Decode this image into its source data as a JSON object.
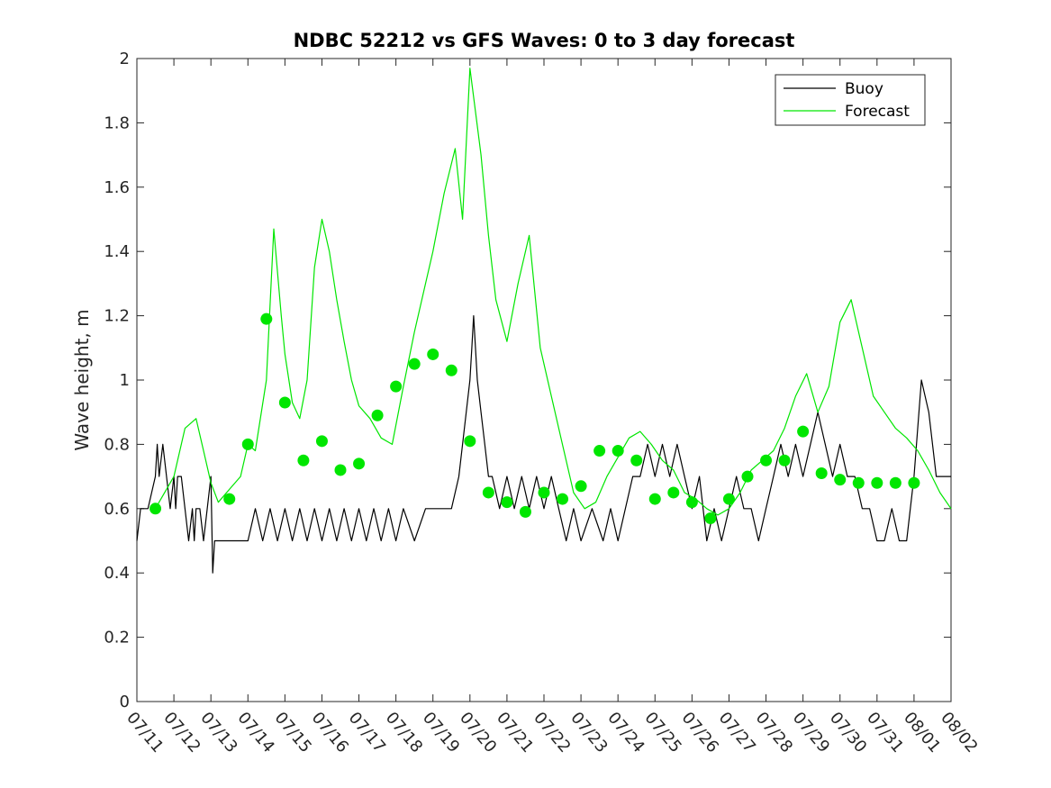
{
  "chart_data": {
    "type": "line",
    "title": "NDBC 52212 vs GFS Waves: 0 to 3 day forecast",
    "xlabel": "",
    "ylabel": "Wave height, m",
    "xlim": [
      0,
      22
    ],
    "ylim": [
      0,
      2
    ],
    "y_ticks": [
      "0",
      "0.2",
      "0.4",
      "0.6",
      "0.8",
      "1",
      "1.2",
      "1.4",
      "1.6",
      "1.8",
      "2"
    ],
    "x_ticks": [
      "07/11",
      "07/12",
      "07/13",
      "07/14",
      "07/15",
      "07/16",
      "07/17",
      "07/18",
      "07/19",
      "07/20",
      "07/21",
      "07/22",
      "07/23",
      "07/24",
      "07/25",
      "07/26",
      "07/27",
      "07/28",
      "07/29",
      "07/30",
      "07/31",
      "08/01",
      "08/02"
    ],
    "grid": false,
    "legend": {
      "location": "top-right",
      "entries": [
        {
          "label": "Buoy",
          "color": "#000000"
        },
        {
          "label": "Forecast",
          "color": "#00e600"
        }
      ]
    },
    "series": [
      {
        "name": "Buoy",
        "color": "#000000",
        "x": [
          0,
          0.1,
          0.3,
          0.5,
          0.55,
          0.6,
          0.7,
          0.8,
          0.9,
          1.0,
          1.05,
          1.1,
          1.2,
          1.3,
          1.4,
          1.5,
          1.55,
          1.6,
          1.7,
          1.8,
          1.9,
          2.0,
          2.05,
          2.1,
          2.5,
          2.8,
          3.0,
          3.2,
          3.4,
          3.6,
          3.8,
          4.0,
          4.2,
          4.4,
          4.6,
          4.8,
          5.0,
          5.2,
          5.4,
          5.6,
          5.8,
          6.0,
          6.2,
          6.4,
          6.6,
          6.8,
          7.0,
          7.2,
          7.5,
          7.8,
          8.0,
          8.5,
          8.7,
          8.8,
          8.9,
          9.0,
          9.05,
          9.1,
          9.2,
          9.3,
          9.4,
          9.5,
          9.6,
          9.8,
          10.0,
          10.2,
          10.4,
          10.6,
          10.8,
          11.0,
          11.2,
          11.4,
          11.6,
          11.8,
          12.0,
          12.3,
          12.6,
          12.8,
          13.0,
          13.2,
          13.4,
          13.6,
          13.8,
          14.0,
          14.2,
          14.4,
          14.6,
          14.8,
          15.0,
          15.2,
          15.4,
          15.6,
          15.8,
          16.0,
          16.2,
          16.4,
          16.6,
          16.8,
          17.0,
          17.2,
          17.4,
          17.6,
          17.8,
          18.0,
          18.2,
          18.4,
          18.6,
          18.8,
          19.0,
          19.2,
          19.4,
          19.6,
          19.8,
          20.0,
          20.2,
          20.4,
          20.6,
          20.8,
          21.0,
          21.2,
          21.4,
          21.6,
          21.8,
          22.0
        ],
        "y": [
          0.5,
          0.6,
          0.6,
          0.7,
          0.8,
          0.7,
          0.8,
          0.7,
          0.6,
          0.7,
          0.6,
          0.7,
          0.7,
          0.6,
          0.5,
          0.6,
          0.5,
          0.6,
          0.6,
          0.5,
          0.6,
          0.7,
          0.4,
          0.5,
          0.5,
          0.5,
          0.5,
          0.6,
          0.5,
          0.6,
          0.5,
          0.6,
          0.5,
          0.6,
          0.5,
          0.6,
          0.5,
          0.6,
          0.5,
          0.6,
          0.5,
          0.6,
          0.5,
          0.6,
          0.5,
          0.6,
          0.5,
          0.6,
          0.5,
          0.6,
          0.6,
          0.6,
          0.7,
          0.8,
          0.9,
          1.0,
          1.1,
          1.2,
          1.0,
          0.9,
          0.8,
          0.7,
          0.7,
          0.6,
          0.7,
          0.6,
          0.7,
          0.6,
          0.7,
          0.6,
          0.7,
          0.6,
          0.5,
          0.6,
          0.5,
          0.6,
          0.5,
          0.6,
          0.5,
          0.6,
          0.7,
          0.7,
          0.8,
          0.7,
          0.8,
          0.7,
          0.8,
          0.7,
          0.6,
          0.7,
          0.5,
          0.6,
          0.5,
          0.6,
          0.7,
          0.6,
          0.6,
          0.5,
          0.6,
          0.7,
          0.8,
          0.7,
          0.8,
          0.7,
          0.8,
          0.9,
          0.8,
          0.7,
          0.8,
          0.7,
          0.7,
          0.6,
          0.6,
          0.5,
          0.5,
          0.6,
          0.5,
          0.5,
          0.7,
          1.0,
          0.9,
          0.7,
          0.7,
          0.7
        ]
      },
      {
        "name": "Forecast",
        "color": "#00e600",
        "x": [
          0.5,
          1.0,
          1.3,
          1.6,
          1.8,
          2.0,
          2.2,
          2.5,
          2.8,
          3.0,
          3.2,
          3.5,
          3.7,
          3.9,
          4.0,
          4.2,
          4.4,
          4.6,
          4.8,
          5.0,
          5.2,
          5.4,
          5.6,
          5.8,
          6.0,
          6.3,
          6.6,
          6.9,
          7.2,
          7.5,
          7.8,
          8.0,
          8.3,
          8.6,
          8.8,
          9.0,
          9.3,
          9.5,
          9.7,
          10.0,
          10.3,
          10.6,
          10.9,
          11.2,
          11.5,
          11.8,
          12.1,
          12.4,
          12.7,
          13.0,
          13.3,
          13.6,
          13.9,
          14.2,
          14.5,
          14.8,
          15.1,
          15.4,
          15.7,
          16.0,
          16.3,
          16.6,
          16.9,
          17.2,
          17.5,
          17.8,
          18.1,
          18.4,
          18.7,
          19.0,
          19.3,
          19.6,
          19.9,
          20.2,
          20.5,
          20.8,
          21.1,
          21.4,
          21.7,
          22.0
        ],
        "y": [
          0.6,
          0.7,
          0.85,
          0.88,
          0.78,
          0.68,
          0.62,
          0.66,
          0.7,
          0.8,
          0.78,
          1.0,
          1.47,
          1.2,
          1.08,
          0.93,
          0.88,
          1.0,
          1.35,
          1.5,
          1.4,
          1.25,
          1.12,
          1.0,
          0.92,
          0.88,
          0.82,
          0.8,
          0.98,
          1.15,
          1.3,
          1.4,
          1.58,
          1.72,
          1.5,
          1.97,
          1.7,
          1.45,
          1.25,
          1.12,
          1.3,
          1.45,
          1.1,
          0.95,
          0.8,
          0.65,
          0.6,
          0.62,
          0.7,
          0.76,
          0.82,
          0.84,
          0.8,
          0.75,
          0.72,
          0.65,
          0.63,
          0.6,
          0.58,
          0.6,
          0.65,
          0.72,
          0.75,
          0.78,
          0.85,
          0.95,
          1.02,
          0.9,
          0.98,
          1.18,
          1.25,
          1.1,
          0.95,
          0.9,
          0.85,
          0.82,
          0.78,
          0.72,
          0.65,
          0.6
        ]
      }
    ],
    "markers": {
      "name": "Forecast",
      "color": "#00e600",
      "x": [
        0.5,
        2.5,
        3.0,
        3.5,
        4.0,
        4.5,
        5.0,
        5.5,
        6.0,
        6.5,
        7.0,
        7.5,
        8.0,
        8.5,
        9.0,
        9.5,
        10.0,
        10.5,
        11.0,
        11.5,
        12.0,
        12.5,
        13.0,
        13.5,
        14.0,
        14.5,
        15.0,
        15.5,
        16.0,
        16.5,
        17.0,
        17.5,
        18.0,
        18.5,
        19.0,
        19.5,
        20.0,
        20.5,
        21.0
      ],
      "y": [
        0.6,
        0.63,
        0.8,
        1.19,
        0.93,
        0.75,
        0.81,
        0.72,
        0.74,
        0.89,
        0.98,
        1.05,
        1.08,
        1.03,
        0.81,
        0.65,
        0.62,
        0.59,
        0.65,
        0.63,
        0.67,
        0.78,
        0.78,
        0.75,
        0.63,
        0.65,
        0.62,
        0.57,
        0.63,
        0.7,
        0.75,
        0.75,
        0.84,
        0.71,
        0.69,
        0.68,
        0.68,
        0.68,
        0.68
      ]
    }
  }
}
